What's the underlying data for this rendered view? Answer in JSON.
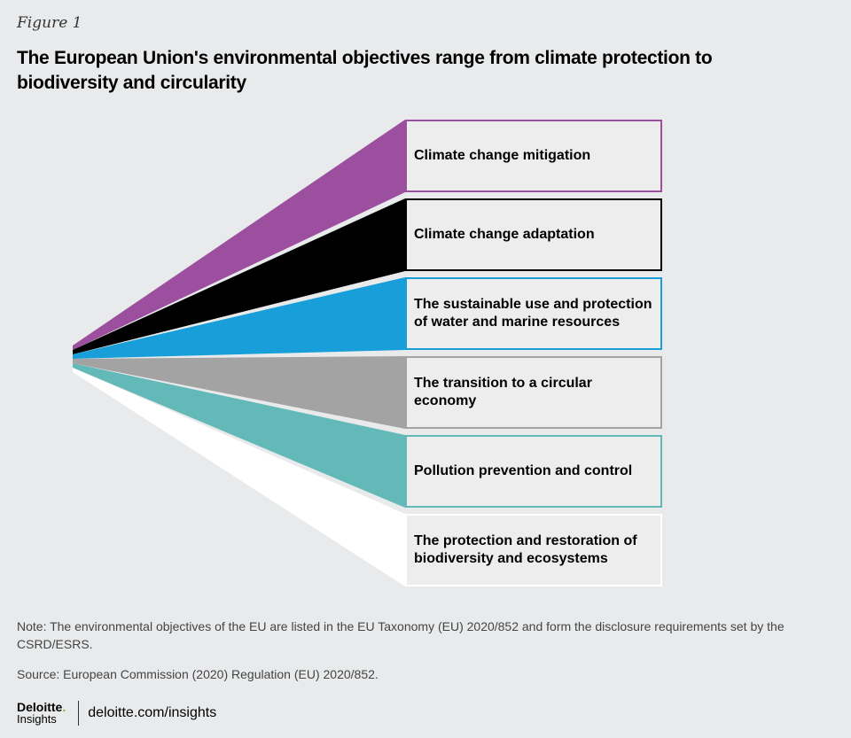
{
  "figure_label": "Figure 1",
  "title": "The European Union's environmental objectives range from climate protection to biodiversity and circularity",
  "objectives": [
    {
      "label": "Climate change mitigation",
      "color": "#9b4f9e"
    },
    {
      "label": "Climate change adaptation",
      "color": "#000000"
    },
    {
      "label": "The sustainable use and protection of water and marine resources",
      "color": "#189fda"
    },
    {
      "label": "The transition to a circular economy",
      "color": "#a3a3a3"
    },
    {
      "label": "Pollution prevention and control",
      "color": "#62b9b8"
    },
    {
      "label": "The protection and restoration of biodiversity and ecosystems",
      "color": "#ffffff"
    }
  ],
  "note": "Note: The environmental objectives of the EU are listed in the EU Taxonomy (EU) 2020/852 and form the disclosure requirements set by the CSRD/ESRS.",
  "source": "Source: European Commission (2020) Regulation (EU) 2020/852.",
  "footer": {
    "logo_main": "Deloitte",
    "logo_dot": ".",
    "logo_sub": "Insights",
    "url": "deloitte.com/insights"
  }
}
